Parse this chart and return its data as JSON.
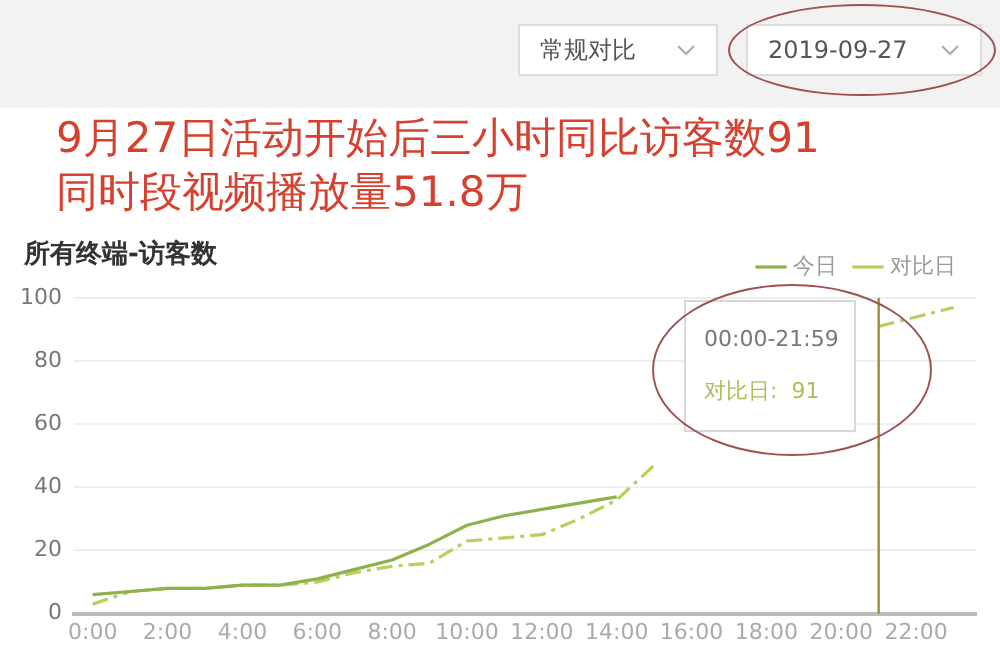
{
  "chart_data": {
    "type": "line",
    "title": "所有终端-访客数",
    "annotations": [
      "常规对比",
      "2019-09-27",
      "9月27日活动开始后三小时同比访客数91",
      "同时段视频播放量51.8万",
      "00:00-21:59",
      "对比日:  91"
    ],
    "x": [
      0,
      1,
      2,
      3,
      4,
      5,
      6,
      7,
      8,
      9,
      10,
      11,
      12,
      13,
      14,
      15,
      16,
      17,
      18,
      19,
      20,
      21,
      22,
      23
    ],
    "series": [
      {
        "name": "今日",
        "color": "#8fb04a",
        "line_style": "solid",
        "values": [
          6,
          7,
          8,
          8,
          9,
          9,
          11,
          14,
          17,
          22,
          28,
          31,
          33,
          35,
          37,
          null,
          null,
          null,
          null,
          null,
          null,
          null,
          null,
          null
        ]
      },
      {
        "name": "对比日",
        "color": "#b8cf5c",
        "line_style": "dashed",
        "values": [
          3,
          7,
          8,
          8,
          9,
          9,
          10,
          13,
          15,
          16,
          23,
          24,
          25,
          30,
          36,
          47,
          null,
          null,
          null,
          null,
          null,
          91,
          94,
          97
        ]
      }
    ],
    "xlim": [
      -0.5,
      23.6
    ],
    "xticks": [
      {
        "value": 0,
        "label": "0:00"
      },
      {
        "value": 2,
        "label": "2:00"
      },
      {
        "value": 4,
        "label": "4:00"
      },
      {
        "value": 6,
        "label": "6:00"
      },
      {
        "value": 8,
        "label": "8:00"
      },
      {
        "value": 10,
        "label": "10:00"
      },
      {
        "value": 12,
        "label": "12:00"
      },
      {
        "value": 14,
        "label": "14:00"
      },
      {
        "value": 16,
        "label": "16:00"
      },
      {
        "value": 18,
        "label": "18:00"
      },
      {
        "value": 20,
        "label": "20:00"
      },
      {
        "value": 22,
        "label": "22:00"
      }
    ],
    "ylim": [
      0,
      100
    ],
    "yticks": [
      0,
      20,
      40,
      60,
      80,
      100
    ],
    "ref_lines": [
      {
        "axis": "x",
        "value": 21,
        "color": "#a08a3a"
      }
    ],
    "grid": "y",
    "legend": "top right",
    "marker": "none"
  }
}
